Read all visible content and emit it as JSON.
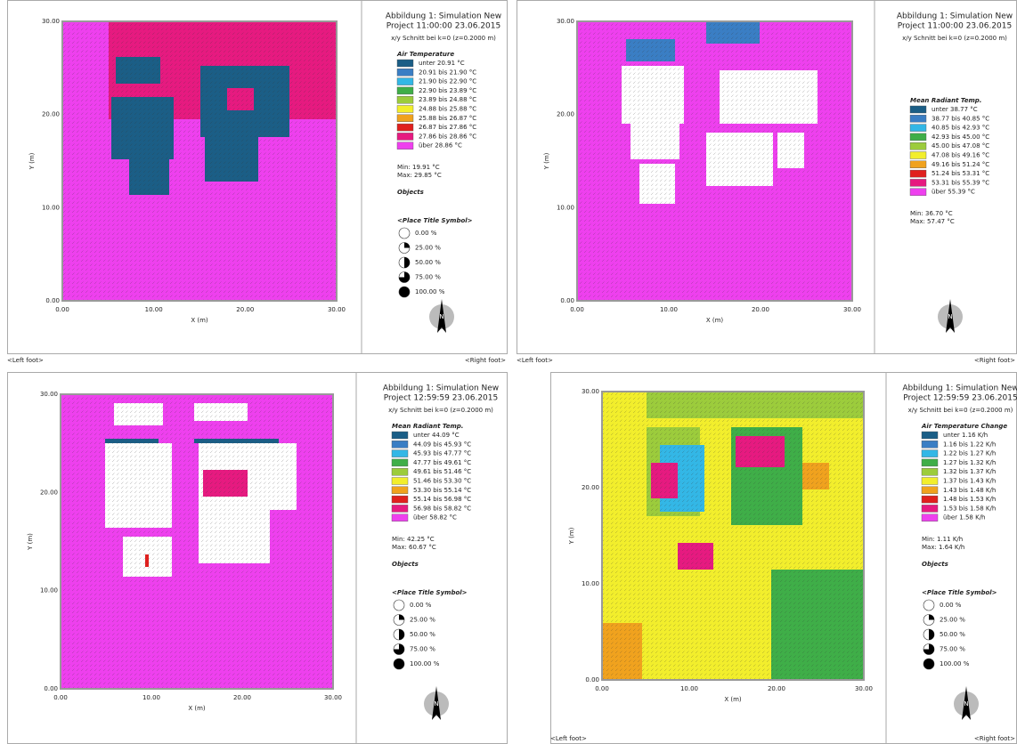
{
  "panels": [
    {
      "title": [
        "Abbildung 1: Simulation New",
        "Project 11:00:00 23.06.2015"
      ],
      "subtitle": "x/y Schnitt bei k=0 (z=0.2000 m)",
      "legend_title": "Air Temperature",
      "legend": [
        {
          "label": "unter 20.91 °C",
          "color": "#1b5e86"
        },
        {
          "label": "20.91 bis 21.90 °C",
          "color": "#3a7ec4"
        },
        {
          "label": "21.90 bis 22.90 °C",
          "color": "#33b7e6"
        },
        {
          "label": "22.90 bis 23.89 °C",
          "color": "#3fae48"
        },
        {
          "label": "23.89 bis 24.88 °C",
          "color": "#9ccc3c"
        },
        {
          "label": "24.88 bis 25.88 °C",
          "color": "#f2ee2c"
        },
        {
          "label": "25.88 bis 26.87 °C",
          "color": "#f0a21e"
        },
        {
          "label": "26.87 bis 27.86 °C",
          "color": "#e0201e"
        },
        {
          "label": "27.86 bis 28.86 °C",
          "color": "#e61a80"
        },
        {
          "label": "über 28.86 °C",
          "color": "#ee40ee"
        }
      ],
      "min": "Min: 19.91 °C",
      "max": "Max: 29.85 °C",
      "objects": "Objects",
      "symbol_title": "<Place Title Symbol>",
      "symbols": [
        "0.00 %",
        "25.00 %",
        "50.00 %",
        "75.00 %",
        "100.00 %"
      ],
      "x_label": "X (m)",
      "y_label": "Y (m)",
      "x_ticks": [
        "0.00",
        "10.00",
        "20.00",
        "30.00"
      ],
      "y_ticks": [
        "0.00",
        "10.00",
        "20.00",
        "30.00"
      ],
      "north": "N",
      "left_foot": "<Left foot>",
      "right_foot": "<Right foot>"
    },
    {
      "title": [
        "Abbildung 1: Simulation New",
        "Project 11:00:00 23.06.2015"
      ],
      "subtitle": "x/y Schnitt bei k=0 (z=0.2000 m)",
      "legend_title": "Mean Radiant Temp.",
      "legend": [
        {
          "label": "unter 38.77 °C",
          "color": "#1b5e86"
        },
        {
          "label": "38.77 bis 40.85 °C",
          "color": "#3a7ec4"
        },
        {
          "label": "40.85 bis 42.93 °C",
          "color": "#33b7e6"
        },
        {
          "label": "42.93 bis 45.00 °C",
          "color": "#3fae48"
        },
        {
          "label": "45.00 bis 47.08 °C",
          "color": "#9ccc3c"
        },
        {
          "label": "47.08 bis 49.16 °C",
          "color": "#f2ee2c"
        },
        {
          "label": "49.16 bis 51.24 °C",
          "color": "#f0a21e"
        },
        {
          "label": "51.24 bis 53.31 °C",
          "color": "#e0201e"
        },
        {
          "label": "53.31 bis 55.39 °C",
          "color": "#e61a80"
        },
        {
          "label": "über 55.39 °C",
          "color": "#ee40ee"
        }
      ],
      "min": "Min: 36.70 °C",
      "max": "Max: 57.47 °C",
      "x_label": "X (m)",
      "y_label": "Y (m)",
      "x_ticks": [
        "0.00",
        "10.00",
        "20.00",
        "30.00"
      ],
      "y_ticks": [
        "0.00",
        "10.00",
        "20.00",
        "30.00"
      ],
      "north": "N",
      "left_foot": "<Left foot>",
      "right_foot": "<Right foot>"
    },
    {
      "title": [
        "Abbildung 1: Simulation New",
        "Project 12:59:59 23.06.2015"
      ],
      "subtitle": "x/y Schnitt bei k=0 (z=0.2000 m)",
      "legend_title": "Mean Radiant Temp.",
      "legend": [
        {
          "label": "unter 44.09 °C",
          "color": "#1b5e86"
        },
        {
          "label": "44.09 bis 45.93 °C",
          "color": "#3a7ec4"
        },
        {
          "label": "45.93 bis 47.77 °C",
          "color": "#33b7e6"
        },
        {
          "label": "47.77 bis 49.61 °C",
          "color": "#3fae48"
        },
        {
          "label": "49.61 bis 51.46 °C",
          "color": "#9ccc3c"
        },
        {
          "label": "51.46 bis 53.30 °C",
          "color": "#f2ee2c"
        },
        {
          "label": "53.30 bis 55.14 °C",
          "color": "#f0a21e"
        },
        {
          "label": "55.14 bis 56.98 °C",
          "color": "#e0201e"
        },
        {
          "label": "56.98 bis 58.82 °C",
          "color": "#e61a80"
        },
        {
          "label": "über 58.82 °C",
          "color": "#ee40ee"
        }
      ],
      "min": "Min: 42.25 °C",
      "max": "Max: 60.67 °C",
      "objects": "Objects",
      "symbol_title": "<Place Title Symbol>",
      "symbols": [
        "0.00 %",
        "25.00 %",
        "50.00 %",
        "75.00 %",
        "100.00 %"
      ],
      "x_label": "X (m)",
      "y_label": "Y (m)",
      "x_ticks": [
        "0.00",
        "10.00",
        "20.00",
        "30.00"
      ],
      "y_ticks": [
        "0.00",
        "10.00",
        "20.00",
        "30.00"
      ],
      "north": "N"
    },
    {
      "title": [
        "Abbildung 1: Simulation New",
        "Project 12:59:59 23.06.2015"
      ],
      "subtitle": "x/y Schnitt bei k=0 (z=0.2000 m)",
      "legend_title": "Air Temperature Change",
      "legend": [
        {
          "label": "unter 1.16 K/h",
          "color": "#1b5e86"
        },
        {
          "label": "1.16 bis 1.22 K/h",
          "color": "#3a7ec4"
        },
        {
          "label": "1.22 bis 1.27 K/h",
          "color": "#33b7e6"
        },
        {
          "label": "1.27 bis 1.32 K/h",
          "color": "#3fae48"
        },
        {
          "label": "1.32 bis 1.37 K/h",
          "color": "#9ccc3c"
        },
        {
          "label": "1.37 bis 1.43 K/h",
          "color": "#f2ee2c"
        },
        {
          "label": "1.43 bis 1.48 K/h",
          "color": "#f0a21e"
        },
        {
          "label": "1.48 bis 1.53 K/h",
          "color": "#e0201e"
        },
        {
          "label": "1.53 bis 1.58 K/h",
          "color": "#e61a80"
        },
        {
          "label": "über 1.58 K/h",
          "color": "#ee40ee"
        }
      ],
      "min": "Min: 1.11 K/h",
      "max": "Max: 1.64 K/h",
      "objects": "Objects",
      "symbol_title": "<Place Title Symbol>",
      "symbols": [
        "0.00 %",
        "25.00 %",
        "50.00 %",
        "75.00 %",
        "100.00 %"
      ],
      "x_label": "X (m)",
      "y_label": "Y (m)",
      "x_ticks": [
        "0.00",
        "10.00",
        "20.00",
        "30.00"
      ],
      "y_ticks": [
        "0.00",
        "10.00",
        "20.00",
        "30.00"
      ],
      "north": "N",
      "left_foot": "<Left foot>",
      "right_foot": "<Right foot>"
    }
  ]
}
